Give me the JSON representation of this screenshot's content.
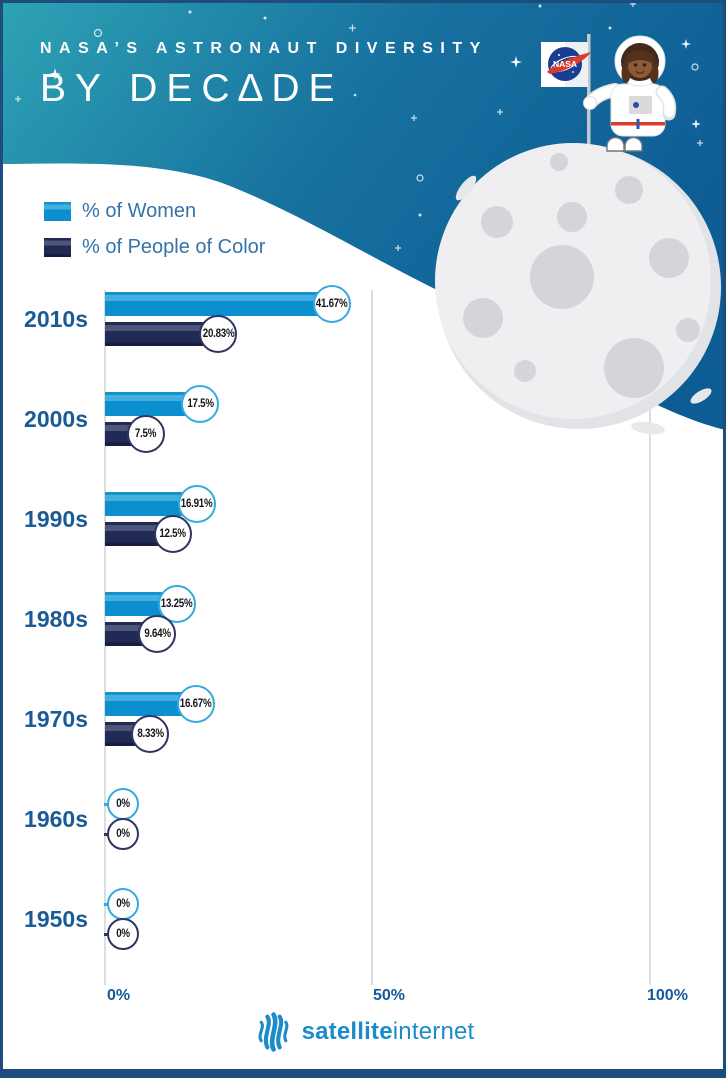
{
  "header": {
    "title_line1": "NASA’S ASTRONAUT DIVERSITY",
    "title_line2": "BY DEC∆DE"
  },
  "legend": {
    "items": [
      {
        "label": "% of Women",
        "color": "#0b8fce"
      },
      {
        "label": "% of People of Color",
        "color": "#202a55"
      }
    ]
  },
  "chart_data": {
    "type": "bar",
    "orientation": "horizontal",
    "title": "NASA's Astronaut Diversity by Decade",
    "categories": [
      "2010s",
      "2000s",
      "1990s",
      "1980s",
      "1970s",
      "1960s",
      "1950s"
    ],
    "series": [
      {
        "name": "% of Women",
        "color": "#0b8fce",
        "values": [
          41.67,
          17.5,
          16.91,
          13.25,
          16.67,
          0,
          0
        ]
      },
      {
        "name": "% of People of Color",
        "color": "#202a55",
        "values": [
          20.83,
          7.5,
          12.5,
          9.64,
          8.33,
          0,
          0
        ]
      }
    ],
    "value_labels": [
      [
        "41.67%",
        "20.83%"
      ],
      [
        "17.5%",
        "7.5%"
      ],
      [
        "16.91%",
        "12.5%"
      ],
      [
        "13.25%",
        "9.64%"
      ],
      [
        "16.67%",
        "8.33%"
      ],
      [
        "0%",
        "0%"
      ],
      [
        "0%",
        "0%"
      ]
    ],
    "x_axis": {
      "ticks": [
        "0%",
        "50%",
        "100%"
      ],
      "range": [
        0,
        100
      ]
    },
    "grid": "vertical gridlines at 0%, 50%, 100%",
    "legend_position": "top-left"
  },
  "illustration": {
    "flag_text": "NASA",
    "description": "astronaut standing on the moon holding a NASA flag"
  },
  "footer": {
    "brand_bold": "satellite",
    "brand_regular": "internet"
  },
  "colors": {
    "header_teal": "#2ea3b5",
    "header_blue": "#0d5c94",
    "women_bar": "#0b8fce",
    "women_bar_light": "#43b0e0",
    "poc_bar": "#202a55",
    "poc_bar_light": "#4e5679",
    "badge_border_women": "#35aadf",
    "badge_border_poc": "#2e3560",
    "decade_label": "#1a5b97",
    "legend_text": "#3474aa",
    "axis_label": "#16599a",
    "gridline": "#dcdddf",
    "brand_blue": "#1d8bc9",
    "bottom_bar": "#1c4d7d"
  }
}
